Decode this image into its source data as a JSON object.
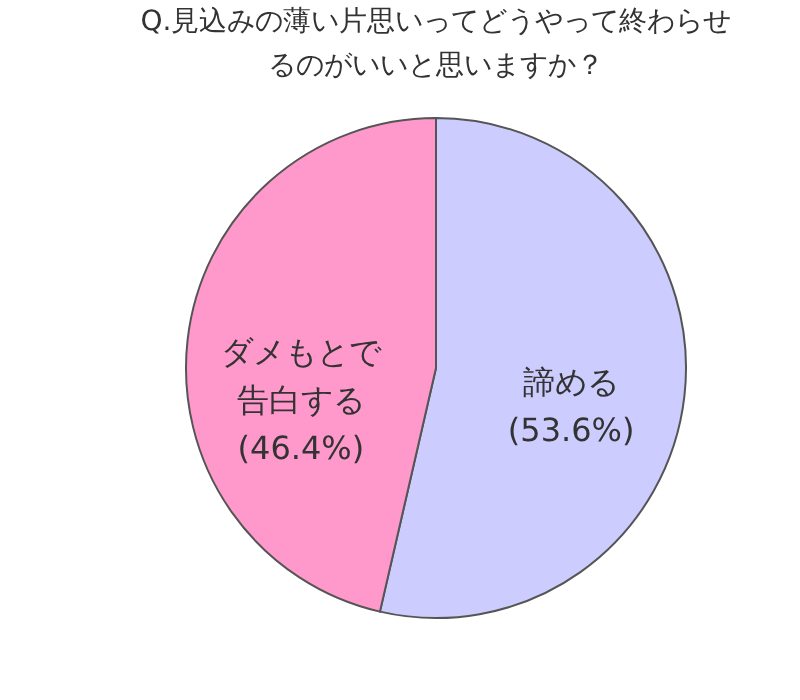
{
  "chart_data": {
    "type": "pie",
    "title": "Q.見込みの薄い片思いってどうやって終わらせるのがいいと思いますか？",
    "categories": [
      "諦める",
      "ダメもとで告白する"
    ],
    "values": [
      53.6,
      46.4
    ],
    "colors": [
      "#ccccff",
      "#ff99cc"
    ],
    "value_labels": [
      "(53.6%)",
      "(46.4%)"
    ],
    "legend": false
  }
}
